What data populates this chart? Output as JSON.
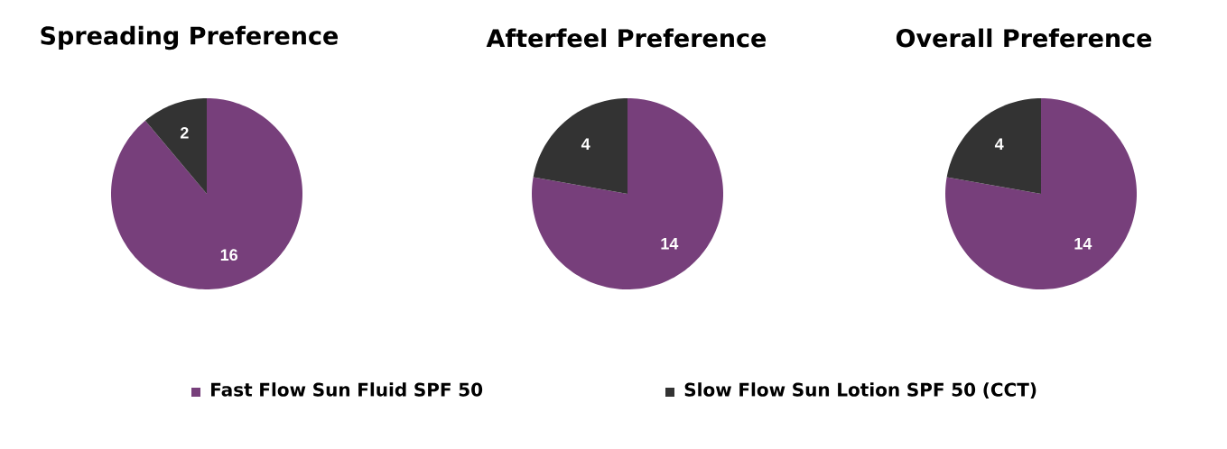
{
  "chart_data": [
    {
      "type": "pie",
      "title": "Spreading Preference",
      "categories": [
        "Fast Flow Sun Fluid SPF 50",
        "Slow Flow Sun Lotion SPF 50 (CCT)"
      ],
      "values": [
        16,
        2
      ],
      "colors": [
        "#773f7b",
        "#333333"
      ],
      "data_labels": true,
      "legend": "bottom"
    },
    {
      "type": "pie",
      "title": "Afterfeel Preference",
      "values": [
        14,
        4
      ],
      "colors": [
        "#773f7b",
        "#333333"
      ],
      "data_labels": true
    },
    {
      "type": "pie",
      "title": "Overall Preference",
      "values": [
        14,
        4
      ],
      "colors": [
        "#773f7b",
        "#333333"
      ],
      "data_labels": true
    }
  ]
}
